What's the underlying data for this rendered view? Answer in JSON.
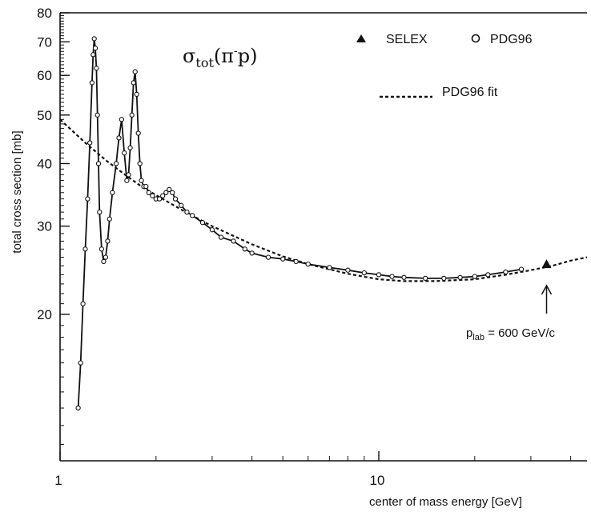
{
  "chart_data": {
    "type": "scatter",
    "title": {
      "base": "σ",
      "sub": "tot",
      "paren": "(π",
      "sup": "-",
      "tail": "p)"
    },
    "xlabel": "center of mass energy [GeV]",
    "ylabel": "total cross section  [mb]",
    "x_scale": "log",
    "y_scale": "log",
    "xlim": [
      1,
      45
    ],
    "ylim": [
      10.2,
      80
    ],
    "x_ticks": [
      {
        "value": 1,
        "label": "1"
      },
      {
        "value": 10,
        "label": "10"
      }
    ],
    "y_ticks": [
      {
        "value": 20,
        "label": "20"
      },
      {
        "value": 30,
        "label": "30"
      },
      {
        "value": 40,
        "label": "40"
      },
      {
        "value": 50,
        "label": "50"
      },
      {
        "value": 60,
        "label": "60"
      },
      {
        "value": 70,
        "label": "70"
      },
      {
        "value": 80,
        "label": "80"
      }
    ],
    "legend": {
      "position": "top-right",
      "entries": [
        {
          "marker": "filled-triangle",
          "label": "SELEX"
        },
        {
          "marker": "open-circle",
          "label": "PDG96"
        },
        {
          "marker": "dashed-line",
          "label": "PDG96 fit"
        }
      ]
    },
    "series": [
      {
        "name": "PDG96",
        "marker": "open-circle",
        "line": "solid",
        "x": [
          1.14,
          1.16,
          1.18,
          1.2,
          1.22,
          1.24,
          1.26,
          1.27,
          1.28,
          1.29,
          1.3,
          1.31,
          1.32,
          1.33,
          1.35,
          1.37,
          1.39,
          1.41,
          1.43,
          1.46,
          1.5,
          1.53,
          1.56,
          1.59,
          1.62,
          1.64,
          1.66,
          1.68,
          1.7,
          1.72,
          1.74,
          1.76,
          1.78,
          1.8,
          1.83,
          1.86,
          1.9,
          1.95,
          2.0,
          2.05,
          2.1,
          2.15,
          2.2,
          2.25,
          2.3,
          2.4,
          2.5,
          2.6,
          2.8,
          3.0,
          3.2,
          3.5,
          3.8,
          4.0,
          4.5,
          5.0,
          5.5,
          6.0,
          7.0,
          8.0,
          9.0,
          10.0,
          11.0,
          12.0,
          14.0,
          16.0,
          18.0,
          20.0,
          22.0,
          25.0,
          28.0
        ],
        "y": [
          13.0,
          16.0,
          21.0,
          27.0,
          34.0,
          44.0,
          58.0,
          66.0,
          71.0,
          68.0,
          62.0,
          50.0,
          40.0,
          32.0,
          27.0,
          25.5,
          26.0,
          28.0,
          31.0,
          35.0,
          40.0,
          45.0,
          49.0,
          42.0,
          37.0,
          38.0,
          43.0,
          50.0,
          58.0,
          61.0,
          55.0,
          46.0,
          40.0,
          37.0,
          36.0,
          36.0,
          35.0,
          34.5,
          34.0,
          34.0,
          34.5,
          35.0,
          35.5,
          35.0,
          34.0,
          33.0,
          32.0,
          31.5,
          30.5,
          29.5,
          28.5,
          28.0,
          27.0,
          26.5,
          26.0,
          25.8,
          25.5,
          25.2,
          24.8,
          24.5,
          24.2,
          24.0,
          23.8,
          23.7,
          23.6,
          23.6,
          23.7,
          23.8,
          24.0,
          24.3,
          24.6
        ]
      },
      {
        "name": "SELEX",
        "marker": "filled-triangle",
        "x": [
          33.6
        ],
        "y": [
          25.2
        ]
      },
      {
        "name": "PDG96 fit",
        "line": "dashed",
        "x": [
          1.0,
          1.2,
          1.4,
          1.6,
          1.8,
          2.0,
          2.5,
          3.0,
          4.0,
          5.0,
          6.0,
          8.0,
          10.0,
          12.0,
          15.0,
          20.0,
          25.0,
          30.0,
          35.0,
          40.0,
          45.0
        ],
        "y": [
          49.0,
          44.0,
          40.5,
          38.0,
          36.0,
          34.6,
          31.9,
          30.0,
          27.6,
          26.1,
          25.2,
          24.1,
          23.5,
          23.3,
          23.3,
          23.5,
          24.0,
          24.5,
          25.0,
          25.6,
          26.0
        ]
      }
    ],
    "annotations": [
      {
        "type": "arrow",
        "x": 33.6,
        "text_parts": [
          "p",
          "lab",
          " = 600 GeV/c"
        ]
      }
    ]
  }
}
